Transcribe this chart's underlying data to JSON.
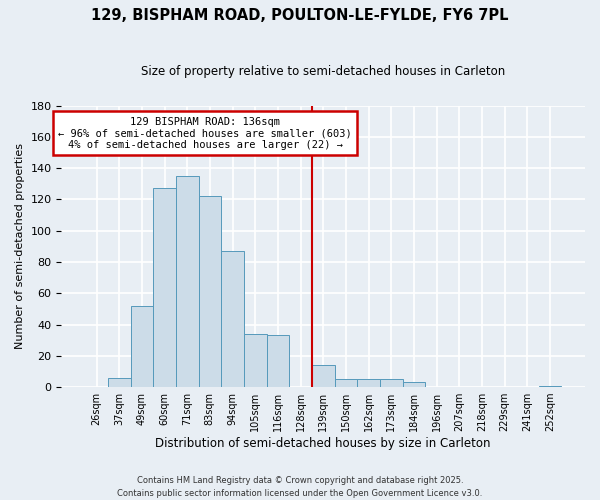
{
  "title": "129, BISPHAM ROAD, POULTON-LE-FYLDE, FY6 7PL",
  "subtitle": "Size of property relative to semi-detached houses in Carleton",
  "xlabel": "Distribution of semi-detached houses by size in Carleton",
  "ylabel": "Number of semi-detached properties",
  "bin_labels": [
    "26sqm",
    "37sqm",
    "49sqm",
    "60sqm",
    "71sqm",
    "83sqm",
    "94sqm",
    "105sqm",
    "116sqm",
    "128sqm",
    "139sqm",
    "150sqm",
    "162sqm",
    "173sqm",
    "184sqm",
    "196sqm",
    "207sqm",
    "218sqm",
    "229sqm",
    "241sqm",
    "252sqm"
  ],
  "bar_heights": [
    0,
    6,
    52,
    127,
    135,
    122,
    87,
    34,
    33,
    0,
    14,
    5,
    5,
    5,
    3,
    0,
    0,
    0,
    0,
    0,
    1
  ],
  "bar_color": "#ccdce8",
  "bar_edge_color": "#5599bb",
  "vline_color": "#cc0000",
  "annotation_title": "129 BISPHAM ROAD: 136sqm",
  "annotation_line1": "← 96% of semi-detached houses are smaller (603)",
  "annotation_line2": "4% of semi-detached houses are larger (22) →",
  "annotation_box_color": "white",
  "annotation_box_edge": "#cc0000",
  "ylim": [
    0,
    180
  ],
  "yticks": [
    0,
    20,
    40,
    60,
    80,
    100,
    120,
    140,
    160,
    180
  ],
  "footer1": "Contains HM Land Registry data © Crown copyright and database right 2025.",
  "footer2": "Contains public sector information licensed under the Open Government Licence v3.0.",
  "bg_color": "#e8eef4"
}
